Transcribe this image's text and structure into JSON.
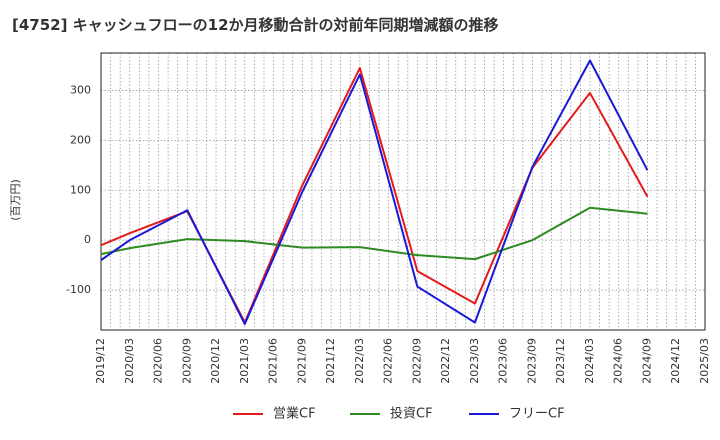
{
  "chart_data": {
    "type": "line",
    "title": "[4752]  キャッシュフローの12か月移動合計の対前年同期増減額の推移",
    "ylabel": "(百万円)",
    "xlabel": "",
    "ylim": [
      -180,
      375
    ],
    "yticks": [
      300,
      200,
      100,
      0,
      -100
    ],
    "ytick_labels": [
      "300",
      "200",
      "100",
      "0",
      "-100"
    ],
    "x_tick_labels": [
      "2019/12",
      "2020/03",
      "2020/06",
      "2020/09",
      "2020/12",
      "2021/03",
      "2021/06",
      "2021/09",
      "2021/12",
      "2022/03",
      "2022/06",
      "2022/09",
      "2022/12",
      "2023/03",
      "2023/06",
      "2023/09",
      "2023/12",
      "2024/03",
      "2024/06",
      "2024/09",
      "2024/12",
      "2025/03"
    ],
    "grid": true,
    "legend_position": "bottom",
    "series": [
      {
        "name": "営業CF",
        "color": "#e41a1c",
        "x": [
          "2019/12",
          "2020/03",
          "2020/09",
          "2021/03",
          "2021/09",
          "2022/03",
          "2022/09",
          "2023/03",
          "2023/09",
          "2024/03",
          "2024/09"
        ],
        "values": [
          -10,
          14,
          58,
          -165,
          110,
          345,
          -62,
          -127,
          145,
          295,
          87
        ]
      },
      {
        "name": "投資CF",
        "color": "#2e8b22",
        "x": [
          "2019/12",
          "2020/03",
          "2020/09",
          "2021/03",
          "2021/09",
          "2022/03",
          "2022/09",
          "2023/03",
          "2023/09",
          "2024/03",
          "2024/09"
        ],
        "values": [
          -28,
          -16,
          2,
          -2,
          -15,
          -14,
          -30,
          -38,
          0,
          65,
          53
        ]
      },
      {
        "name": "フリーCF",
        "color": "#1a1ad6",
        "x": [
          "2019/12",
          "2020/03",
          "2020/09",
          "2021/03",
          "2021/09",
          "2022/03",
          "2022/09",
          "2023/03",
          "2023/09",
          "2024/03",
          "2024/09"
        ],
        "values": [
          -40,
          0,
          60,
          -168,
          97,
          332,
          -93,
          -165,
          147,
          360,
          140
        ]
      }
    ]
  }
}
